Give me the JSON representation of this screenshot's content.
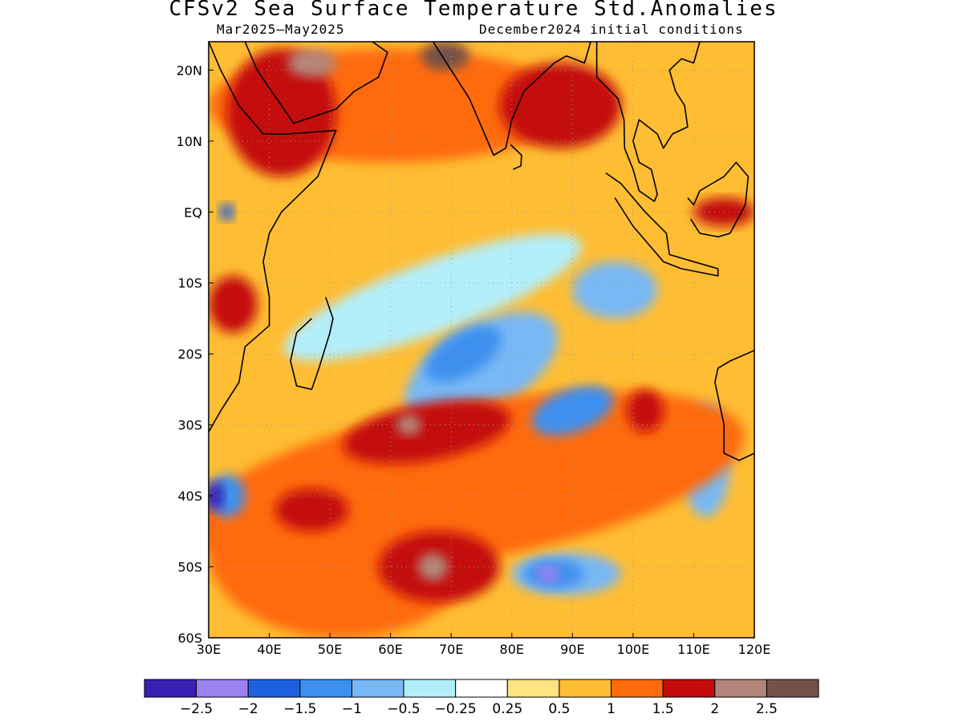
{
  "header": {
    "title": "CFSv2 Sea Surface Temperature Std.Anomalies",
    "valid_period": "Mar2025–May2025",
    "init": "December2024 initial conditions"
  },
  "map": {
    "lon_range": [
      30,
      120
    ],
    "lat_range": [
      -60,
      24
    ],
    "lon_ticks": [
      {
        "value": 30,
        "label": "30E"
      },
      {
        "value": 40,
        "label": "40E"
      },
      {
        "value": 50,
        "label": "50E"
      },
      {
        "value": 60,
        "label": "60E"
      },
      {
        "value": 70,
        "label": "70E"
      },
      {
        "value": 80,
        "label": "80E"
      },
      {
        "value": 90,
        "label": "90E"
      },
      {
        "value": 100,
        "label": "100E"
      },
      {
        "value": 110,
        "label": "110E"
      },
      {
        "value": 120,
        "label": "120E"
      }
    ],
    "lat_ticks": [
      {
        "value": 20,
        "label": "20N"
      },
      {
        "value": 10,
        "label": "10N"
      },
      {
        "value": 0,
        "label": "EQ"
      },
      {
        "value": -10,
        "label": "10S"
      },
      {
        "value": -20,
        "label": "20S"
      },
      {
        "value": -30,
        "label": "30S"
      },
      {
        "value": -40,
        "label": "40S"
      },
      {
        "value": -50,
        "label": "50S"
      },
      {
        "value": -60,
        "label": "60S"
      }
    ],
    "anomaly_features": [
      {
        "level": 1,
        "lon": 73,
        "lat": -38,
        "rx": 46,
        "ry": 11,
        "rot": -10
      },
      {
        "level": 1,
        "lon": 52,
        "lat": -48,
        "rx": 22,
        "ry": 12,
        "rot": 0
      },
      {
        "level": 1,
        "lon": 60,
        "lat": 15,
        "rx": 30,
        "ry": 8,
        "rot": 0
      },
      {
        "level": 1.5,
        "lon": 42,
        "lat": 14,
        "rx": 9,
        "ry": 9,
        "rot": 0
      },
      {
        "level": 1.5,
        "lon": 88,
        "lat": 15,
        "rx": 10,
        "ry": 6,
        "rot": 0
      },
      {
        "level": 1.5,
        "lon": 66,
        "lat": -31,
        "rx": 14,
        "ry": 4,
        "rot": -10
      },
      {
        "level": 1.5,
        "lon": 68,
        "lat": -50,
        "rx": 10,
        "ry": 5,
        "rot": 0
      },
      {
        "level": 1.5,
        "lon": 47,
        "lat": -42,
        "rx": 6,
        "ry": 3,
        "rot": 0
      },
      {
        "level": 1.5,
        "lon": 34,
        "lat": -13,
        "rx": 4,
        "ry": 4,
        "rot": 0
      },
      {
        "level": 1.5,
        "lon": 102,
        "lat": -28,
        "rx": 3,
        "ry": 3,
        "rot": 0
      },
      {
        "level": 1.5,
        "lon": 115,
        "lat": 0,
        "rx": 5,
        "ry": 2,
        "rot": 0
      },
      {
        "level": 2,
        "lon": 63,
        "lat": -30,
        "rx": 2,
        "ry": 1.5,
        "rot": 0
      },
      {
        "level": 2,
        "lon": 67,
        "lat": -50,
        "rx": 2.5,
        "ry": 2,
        "rot": 0
      },
      {
        "level": 2,
        "lon": 47,
        "lat": 21,
        "rx": 4,
        "ry": 2,
        "rot": 0
      },
      {
        "level": 2.5,
        "lon": 69,
        "lat": 22,
        "rx": 4,
        "ry": 2,
        "rot": 0
      },
      {
        "level": -0.25,
        "lon": 67,
        "lat": -12,
        "rx": 26,
        "ry": 5,
        "rot": -20
      },
      {
        "level": -0.5,
        "lon": 75,
        "lat": -22,
        "rx": 14,
        "ry": 6,
        "rot": -30
      },
      {
        "level": -0.5,
        "lon": 97,
        "lat": -11,
        "rx": 7,
        "ry": 4,
        "rot": 0
      },
      {
        "level": -0.5,
        "lon": 89,
        "lat": -51,
        "rx": 9,
        "ry": 3,
        "rot": 0
      },
      {
        "level": -0.5,
        "lon": 112,
        "lat": -35,
        "rx": 4,
        "ry": 8,
        "rot": 0
      },
      {
        "level": -1,
        "lon": 72,
        "lat": -20,
        "rx": 7,
        "ry": 3,
        "rot": -30
      },
      {
        "level": -1,
        "lon": 90,
        "lat": -28,
        "rx": 7,
        "ry": 3,
        "rot": -20
      },
      {
        "level": -1,
        "lon": 87,
        "lat": -51,
        "rx": 5,
        "ry": 2,
        "rot": 0
      },
      {
        "level": -1,
        "lon": 33,
        "lat": -40,
        "rx": 3,
        "ry": 3,
        "rot": 0
      },
      {
        "level": -1.5,
        "lon": 33,
        "lat": 0,
        "rx": 1.2,
        "ry": 1.2,
        "rot": 0
      },
      {
        "level": -2,
        "lon": 86,
        "lat": -51,
        "rx": 2,
        "ry": 1.2,
        "rot": 0
      },
      {
        "level": -2.5,
        "lon": 31,
        "lat": -40,
        "rx": 1.5,
        "ry": 2,
        "rot": 0
      }
    ],
    "land": [
      {
        "name": "Arabia",
        "points": [
          [
            36,
            24
          ],
          [
            38,
            20
          ],
          [
            42,
            15
          ],
          [
            44,
            12.5
          ],
          [
            51,
            14.5
          ],
          [
            54,
            17
          ],
          [
            58,
            19
          ],
          [
            59.5,
            22.5
          ],
          [
            57,
            24
          ]
        ]
      },
      {
        "name": "India",
        "points": [
          [
            67,
            24
          ],
          [
            70,
            20
          ],
          [
            73,
            16
          ],
          [
            75,
            12
          ],
          [
            77,
            8
          ],
          [
            79,
            9
          ],
          [
            80,
            13
          ],
          [
            82,
            17
          ],
          [
            87,
            21
          ],
          [
            89,
            22
          ],
          [
            92,
            21
          ],
          [
            93,
            24
          ]
        ]
      },
      {
        "name": "Sri Lanka",
        "points": [
          [
            79.8,
            9.5
          ],
          [
            81.6,
            8
          ],
          [
            81.5,
            6.5
          ],
          [
            80.2,
            6
          ]
        ]
      },
      {
        "name": "Africa",
        "points": [
          [
            30,
            24
          ],
          [
            32,
            20
          ],
          [
            35,
            15
          ],
          [
            39,
            11
          ],
          [
            43,
            11
          ],
          [
            51,
            11.5
          ],
          [
            48,
            5
          ],
          [
            42,
            0
          ],
          [
            40,
            -3
          ],
          [
            39,
            -7
          ],
          [
            40,
            -12
          ],
          [
            40,
            -16
          ],
          [
            36,
            -19
          ],
          [
            35,
            -24
          ],
          [
            32,
            -28
          ],
          [
            30,
            -31
          ]
        ]
      },
      {
        "name": "Madagascar",
        "points": [
          [
            49.3,
            -12
          ],
          [
            50.5,
            -15
          ],
          [
            50,
            -17
          ],
          [
            48.2,
            -22
          ],
          [
            47,
            -25
          ],
          [
            44.5,
            -24.5
          ],
          [
            43.5,
            -21
          ],
          [
            44.5,
            -17
          ],
          [
            47,
            -15
          ]
        ]
      },
      {
        "name": "Southeast Asia",
        "points": [
          [
            94,
            24
          ],
          [
            94,
            19
          ],
          [
            97.5,
            16
          ],
          [
            98.5,
            13
          ],
          [
            98.6,
            9
          ],
          [
            100,
            6
          ],
          [
            101,
            3
          ],
          [
            103.5,
            1.5
          ],
          [
            104,
            2.5
          ],
          [
            103,
            6
          ],
          [
            101,
            7
          ],
          [
            100,
            10
          ],
          [
            101,
            13
          ],
          [
            104,
            11
          ],
          [
            105,
            9
          ],
          [
            106.5,
            11
          ],
          [
            109,
            12
          ],
          [
            108.5,
            15
          ],
          [
            107,
            17
          ],
          [
            106,
            20
          ],
          [
            108,
            21.6
          ],
          [
            110,
            21
          ],
          [
            111,
            24
          ]
        ]
      },
      {
        "name": "Sumatra-Java",
        "points": [
          [
            95.5,
            5.5
          ],
          [
            98,
            4
          ],
          [
            102,
            0
          ],
          [
            105.5,
            -3
          ],
          [
            106,
            -6
          ],
          [
            110,
            -7
          ],
          [
            114,
            -8
          ],
          [
            114,
            -9
          ],
          [
            108,
            -8
          ],
          [
            105,
            -7
          ],
          [
            103,
            -5
          ],
          [
            100,
            -2
          ],
          [
            97,
            2
          ]
        ]
      },
      {
        "name": "Borneo",
        "points": [
          [
            109,
            2
          ],
          [
            110,
            1
          ],
          [
            111,
            3
          ],
          [
            115,
            5
          ],
          [
            117,
            7
          ],
          [
            119,
            5
          ],
          [
            118.5,
            1
          ],
          [
            116,
            -3
          ],
          [
            114,
            -3.5
          ],
          [
            111,
            -3
          ],
          [
            109.5,
            -1
          ]
        ]
      },
      {
        "name": "Australia",
        "points": [
          [
            120,
            -19.5
          ],
          [
            116,
            -21
          ],
          [
            114,
            -22
          ],
          [
            113.5,
            -24
          ],
          [
            114,
            -26
          ],
          [
            115,
            -30
          ],
          [
            115,
            -34
          ],
          [
            117.5,
            -35
          ],
          [
            120,
            -34
          ]
        ]
      }
    ]
  },
  "colorbar": {
    "colors": [
      "#3a1fb5",
      "#9b82f0",
      "#1e61e0",
      "#3d90ef",
      "#78b8f5",
      "#b2eefa",
      "#ffffff",
      "#ffe381",
      "#ffbd33",
      "#ff6a0a",
      "#c40b0b",
      "#b38679",
      "#75514a"
    ],
    "labels": [
      "−2.5",
      "−2",
      "−1.5",
      "−1",
      "−0.5",
      "−0.25",
      "0.25",
      "0.5",
      "1",
      "1.5",
      "2",
      "2.5"
    ]
  }
}
